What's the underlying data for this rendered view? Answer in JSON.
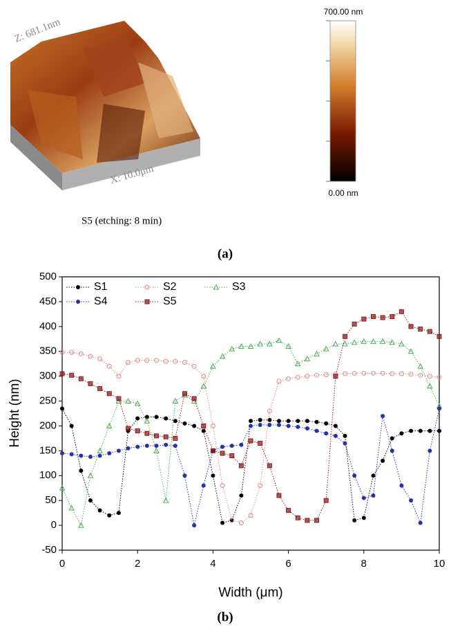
{
  "panel_a": {
    "z_label": "Z: 681.1nm",
    "x_label": "X: 10.0μm",
    "colorbar_max": "700.00 nm",
    "colorbar_min": "0.00 nm",
    "caption": "S5 (etching: 8 min)",
    "label": "(a)"
  },
  "panel_b": {
    "label": "(b)"
  },
  "chart_data": {
    "type": "line",
    "xlabel": "Width (μm)",
    "ylabel": "Height (nm)",
    "xlim": [
      0,
      10
    ],
    "ylim": [
      -50,
      500
    ],
    "xticks": [
      0,
      2,
      4,
      6,
      8,
      10
    ],
    "yticks": [
      -50,
      0,
      50,
      100,
      150,
      200,
      250,
      300,
      350,
      400,
      450,
      500
    ],
    "legend": "upper left",
    "x": [
      0,
      0.25,
      0.5,
      0.75,
      1,
      1.25,
      1.5,
      1.75,
      2,
      2.25,
      2.5,
      2.75,
      3,
      3.25,
      3.5,
      3.75,
      4,
      4.25,
      4.5,
      4.75,
      5,
      5.25,
      5.5,
      5.75,
      6,
      6.25,
      6.5,
      6.75,
      7,
      7.25,
      7.5,
      7.75,
      8,
      8.25,
      8.5,
      8.75,
      9,
      9.25,
      9.5,
      9.75,
      10
    ],
    "series": [
      {
        "name": "S1",
        "color": "#000000",
        "marker": "circle-filled",
        "values": [
          235,
          200,
          110,
          50,
          30,
          20,
          25,
          190,
          215,
          218,
          218,
          215,
          210,
          205,
          200,
          190,
          100,
          5,
          10,
          60,
          210,
          212,
          212,
          210,
          210,
          210,
          210,
          208,
          205,
          200,
          180,
          10,
          15,
          100,
          130,
          175,
          185,
          190,
          190,
          190,
          190
        ]
      },
      {
        "name": "S2",
        "color": "#e08a8a",
        "marker": "circle-open",
        "values": [
          348,
          348,
          345,
          340,
          335,
          320,
          300,
          328,
          332,
          332,
          332,
          330,
          330,
          328,
          320,
          300,
          200,
          80,
          10,
          5,
          20,
          80,
          230,
          290,
          295,
          298,
          300,
          302,
          303,
          304,
          305,
          306,
          306,
          306,
          306,
          305,
          305,
          304,
          302,
          300,
          298
        ]
      },
      {
        "name": "S3",
        "color": "#4caf50",
        "marker": "triangle-open",
        "values": [
          75,
          35,
          0,
          100,
          150,
          200,
          250,
          250,
          245,
          210,
          150,
          50,
          250,
          262,
          250,
          280,
          320,
          340,
          355,
          360,
          360,
          365,
          365,
          372,
          360,
          325,
          335,
          345,
          355,
          365,
          365,
          368,
          370,
          370,
          370,
          368,
          365,
          350,
          320,
          280,
          240
        ]
      },
      {
        "name": "S4",
        "color": "#2233aa",
        "marker": "circle-filled",
        "values": [
          145,
          143,
          140,
          138,
          140,
          145,
          150,
          155,
          158,
          160,
          160,
          162,
          160,
          100,
          0,
          80,
          150,
          158,
          160,
          162,
          200,
          202,
          202,
          202,
          200,
          198,
          195,
          190,
          185,
          180,
          165,
          100,
          55,
          60,
          220,
          150,
          80,
          50,
          5,
          150,
          235
        ]
      },
      {
        "name": "S5",
        "color": "#8b1a1a",
        "marker": "square-filled",
        "values": [
          305,
          302,
          295,
          285,
          275,
          265,
          255,
          195,
          190,
          185,
          180,
          178,
          175,
          265,
          255,
          200,
          150,
          145,
          140,
          120,
          170,
          165,
          120,
          60,
          30,
          15,
          10,
          10,
          50,
          300,
          380,
          405,
          415,
          420,
          418,
          420,
          430,
          400,
          395,
          390,
          380
        ]
      }
    ]
  }
}
